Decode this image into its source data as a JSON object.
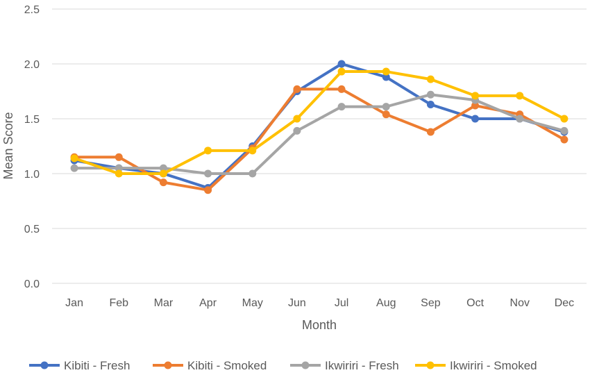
{
  "chart_data": {
    "type": "line",
    "title": "",
    "xlabel": "Month",
    "ylabel": "Mean Score",
    "ylim": [
      0,
      2.5
    ],
    "yticks": [
      "0.0",
      "0.5",
      "1.0",
      "1.5",
      "2.0",
      "2.5"
    ],
    "grid": true,
    "legend_position": "bottom",
    "categories": [
      "Jan",
      "Feb",
      "Mar",
      "Apr",
      "May",
      "Jun",
      "Jul",
      "Aug",
      "Sep",
      "Oct",
      "Nov",
      "Dec"
    ],
    "series": [
      {
        "name": "Kibiti - Fresh",
        "color": "#4472C4",
        "values": [
          1.12,
          1.05,
          1.0,
          0.87,
          1.25,
          1.75,
          2.0,
          1.88,
          1.63,
          1.5,
          1.5,
          1.38
        ]
      },
      {
        "name": "Kibiti - Smoked",
        "color": "#ED7D31",
        "values": [
          1.15,
          1.15,
          0.92,
          0.85,
          1.23,
          1.77,
          1.77,
          1.54,
          1.38,
          1.62,
          1.54,
          1.31
        ]
      },
      {
        "name": "Ikwiriri - Fresh",
        "color": "#A5A5A5",
        "values": [
          1.05,
          1.05,
          1.05,
          1.0,
          1.0,
          1.39,
          1.61,
          1.61,
          1.72,
          1.67,
          1.5,
          1.39
        ]
      },
      {
        "name": "Ikwiriri - Smoked",
        "color": "#FFC000",
        "values": [
          1.14,
          1.0,
          1.0,
          1.21,
          1.21,
          1.5,
          1.93,
          1.93,
          1.86,
          1.71,
          1.71,
          1.5
        ]
      }
    ]
  }
}
